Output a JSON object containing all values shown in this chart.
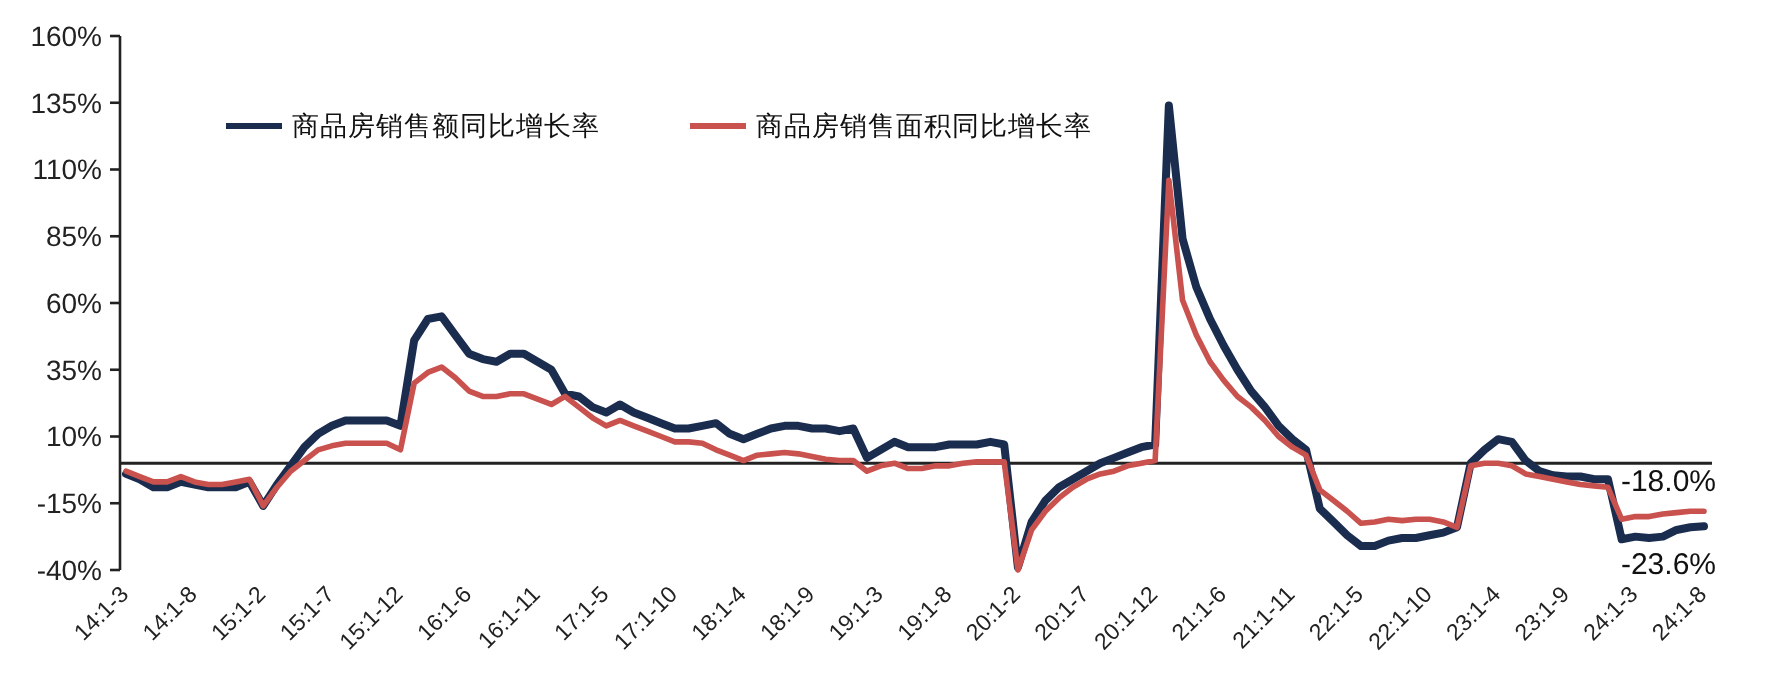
{
  "chart_data": {
    "type": "line",
    "categories": [
      "14:1-3",
      null,
      null,
      null,
      null,
      "14:1-8",
      null,
      null,
      null,
      null,
      "15:1-2",
      null,
      null,
      null,
      null,
      "15:1-7",
      null,
      null,
      null,
      null,
      "15:1-12",
      null,
      null,
      null,
      null,
      "16:1-6",
      null,
      null,
      null,
      null,
      "16:1-11",
      null,
      null,
      null,
      null,
      "17:1-5",
      null,
      null,
      null,
      null,
      "17:1-10",
      null,
      null,
      null,
      null,
      "18:1-4",
      null,
      null,
      null,
      null,
      "18:1-9",
      null,
      null,
      null,
      null,
      "19:1-3",
      null,
      null,
      null,
      null,
      "19:1-8",
      null,
      null,
      null,
      null,
      "20:1-2",
      null,
      null,
      null,
      null,
      "20:1-7",
      null,
      null,
      null,
      null,
      "20:1-12",
      null,
      null,
      null,
      null,
      "21:1-6",
      null,
      null,
      null,
      null,
      "21:1-11",
      null,
      null,
      null,
      null,
      "22:1-5",
      null,
      null,
      null,
      null,
      "22:1-10",
      null,
      null,
      null,
      null,
      "23:1-4",
      null,
      null,
      null,
      null,
      "23:1-9",
      null,
      null,
      null,
      null,
      "24:1-3",
      null,
      null,
      null,
      null,
      "24:1-8"
    ],
    "series": [
      {
        "name": "商品房销售额同比增长率",
        "color": "#1b2d4f",
        "values": [
          -4,
          -6,
          -9,
          -9,
          -7,
          -8,
          -9,
          -9,
          -9,
          -7,
          -16,
          -8,
          -1,
          6,
          11,
          14,
          16,
          16,
          16,
          16,
          14,
          46,
          54,
          55,
          48,
          41,
          39,
          38,
          41,
          41,
          38,
          35,
          26,
          25,
          21,
          19,
          22,
          19,
          17,
          15,
          13,
          13,
          14,
          15,
          11,
          9,
          11,
          13,
          14,
          14,
          13,
          13,
          12,
          13,
          2,
          5,
          8,
          6,
          6,
          6,
          7,
          7,
          7,
          8,
          7,
          -39,
          -22,
          -14,
          -9,
          -6,
          -3,
          0,
          2,
          4,
          6,
          7,
          134,
          84,
          66,
          54,
          44,
          35,
          27,
          21,
          14,
          9,
          5,
          -17,
          -22,
          -27,
          -31,
          -31,
          -29,
          -28,
          -28,
          -27,
          -26,
          -24,
          0,
          5,
          9,
          8,
          1,
          -3,
          -4.5,
          -5,
          -5,
          -6,
          -6,
          -28.5,
          -27.5,
          -28,
          -27.5,
          -25,
          -24,
          -23.6
        ]
      },
      {
        "name": "商品房销售面积同比增长率",
        "color": "#c9514e",
        "values": [
          -3,
          -5,
          -7,
          -7,
          -5,
          -7,
          -8,
          -8,
          -7,
          -6,
          -16,
          -9,
          -3,
          1,
          5,
          6.5,
          7.5,
          7.5,
          7.5,
          7.5,
          5,
          30,
          34,
          36,
          32,
          27,
          25,
          25,
          26,
          26,
          24,
          22,
          25,
          21,
          17,
          14,
          16,
          14,
          12,
          10,
          8,
          8,
          7.5,
          5,
          3,
          1,
          3,
          3.5,
          4,
          3.5,
          2.5,
          1.5,
          1,
          1,
          -3,
          -1,
          0,
          -2,
          -2,
          -1,
          -1,
          0,
          0.5,
          0.5,
          0.5,
          -40,
          -25,
          -18,
          -13,
          -9,
          -6,
          -4,
          -3,
          -1,
          0,
          1,
          106,
          61,
          48,
          38,
          31,
          25,
          21,
          16,
          10,
          6,
          3,
          -10,
          -14,
          -18,
          -22.5,
          -22,
          -21,
          -21.5,
          -21,
          -21,
          -22,
          -24,
          -1,
          0,
          0,
          -1,
          -4,
          -5,
          -6,
          -7,
          -8,
          -8.5,
          -9,
          -21,
          -20,
          -20,
          -19,
          -18.5,
          -18,
          -18.0
        ]
      }
    ],
    "ylim": [
      -40,
      160
    ],
    "yticks": [
      {
        "value": -40,
        "label": "-40%"
      },
      {
        "value": -15,
        "label": "-15%"
      },
      {
        "value": 10,
        "label": "10%"
      },
      {
        "value": 35,
        "label": "35%"
      },
      {
        "value": 60,
        "label": "60%"
      },
      {
        "value": 85,
        "label": "85%"
      },
      {
        "value": 110,
        "label": "110%"
      },
      {
        "value": 135,
        "label": "135%"
      },
      {
        "value": 160,
        "label": "160%"
      }
    ],
    "legend": "top left",
    "grid": false,
    "annotations": [
      {
        "text": "-18.0%",
        "x": "24:1-8",
        "y": -18.0
      },
      {
        "text": "-23.6%",
        "x": "24:1-8",
        "y": -23.6
      }
    ]
  }
}
